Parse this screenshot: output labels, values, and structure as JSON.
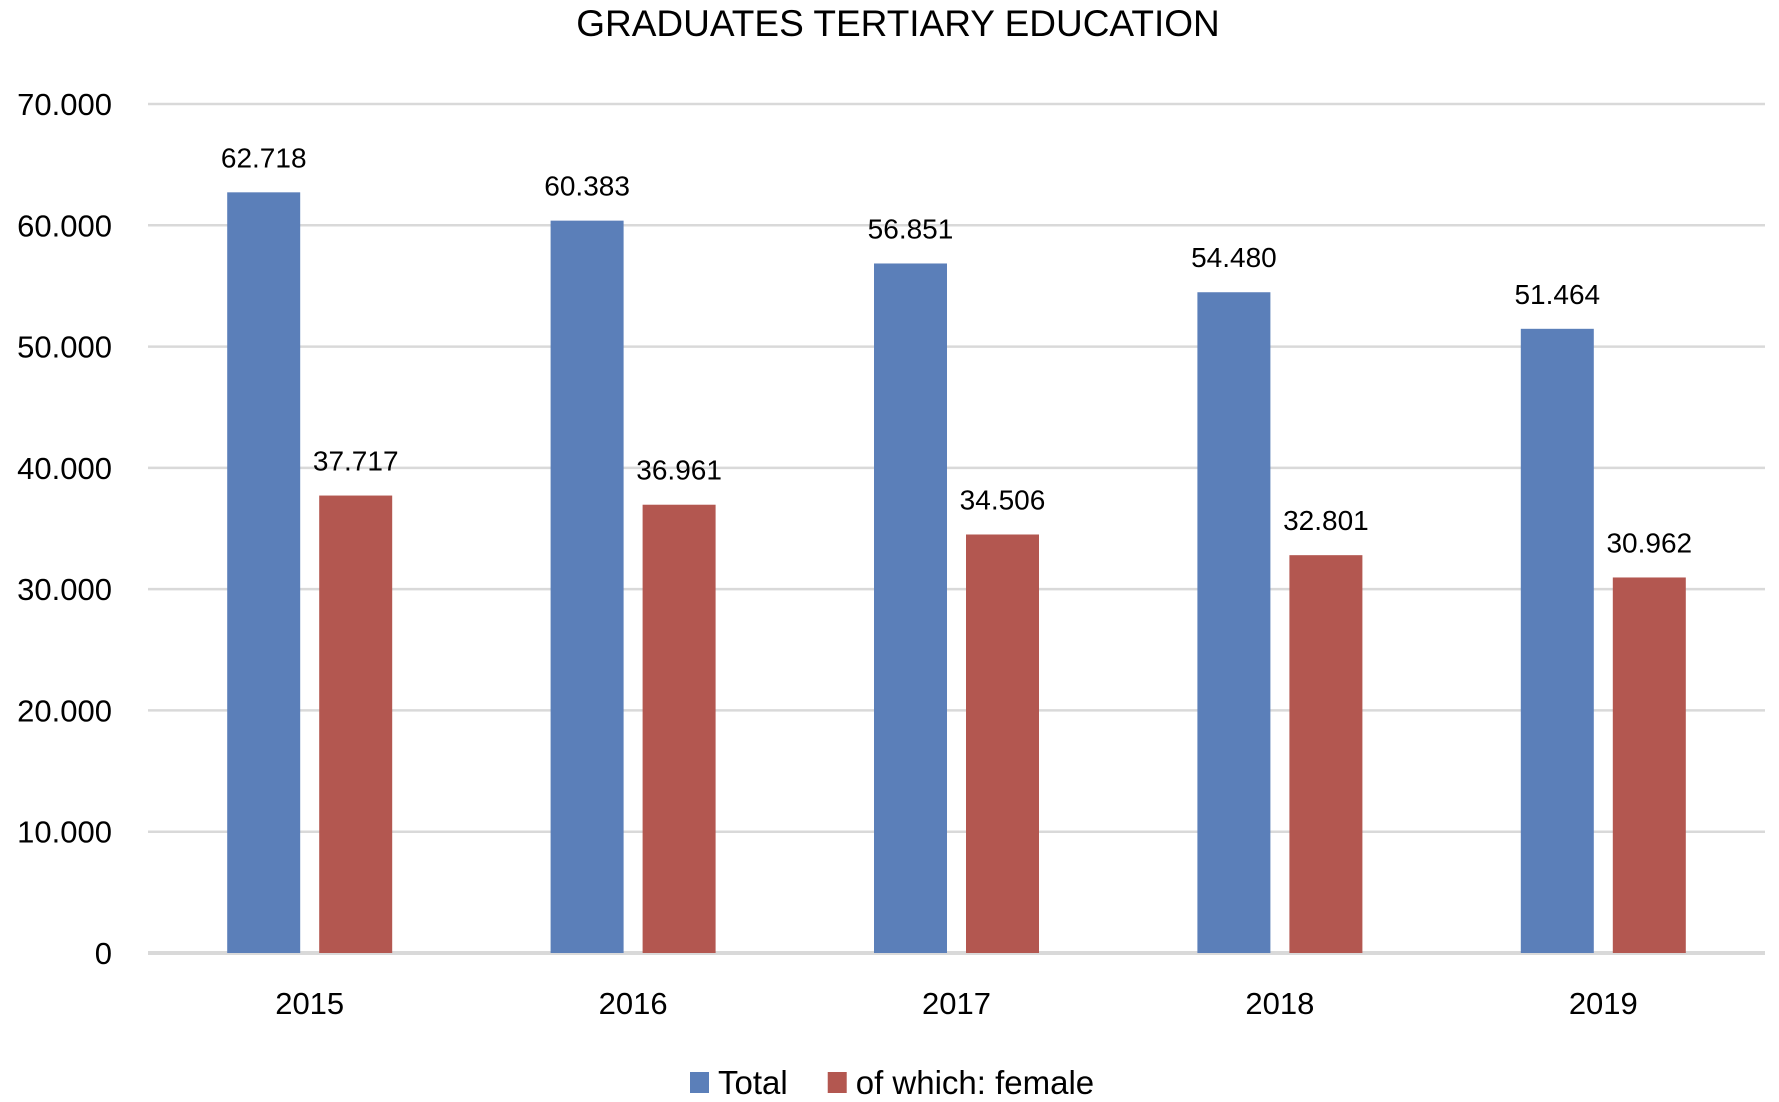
{
  "chart_data": {
    "type": "bar",
    "title": "GRADUATES TERTIARY EDUCATION",
    "xlabel": "",
    "ylabel": "",
    "categories": [
      "2015",
      "2016",
      "2017",
      "2018",
      "2019"
    ],
    "series": [
      {
        "name": "Total",
        "color": "#5b7fb9",
        "values": [
          62718,
          60383,
          56851,
          54480,
          51464
        ],
        "labels": [
          "62.718",
          "60.383",
          "56.851",
          "54.480",
          "51.464"
        ]
      },
      {
        "name": "of which: female",
        "color": "#b35750",
        "values": [
          37717,
          36961,
          34506,
          32801,
          30962
        ],
        "labels": [
          "37.717",
          "36.961",
          "34.506",
          "32.801",
          "30.962"
        ]
      }
    ],
    "ylim": [
      0,
      70000
    ],
    "yticks": [
      0,
      10000,
      20000,
      30000,
      40000,
      50000,
      60000,
      70000
    ],
    "ytick_labels": [
      "0",
      "10.000",
      "20.000",
      "30.000",
      "40.000",
      "50.000",
      "60.000",
      "70.000"
    ],
    "grid": true,
    "legend_position": "bottom-center"
  }
}
